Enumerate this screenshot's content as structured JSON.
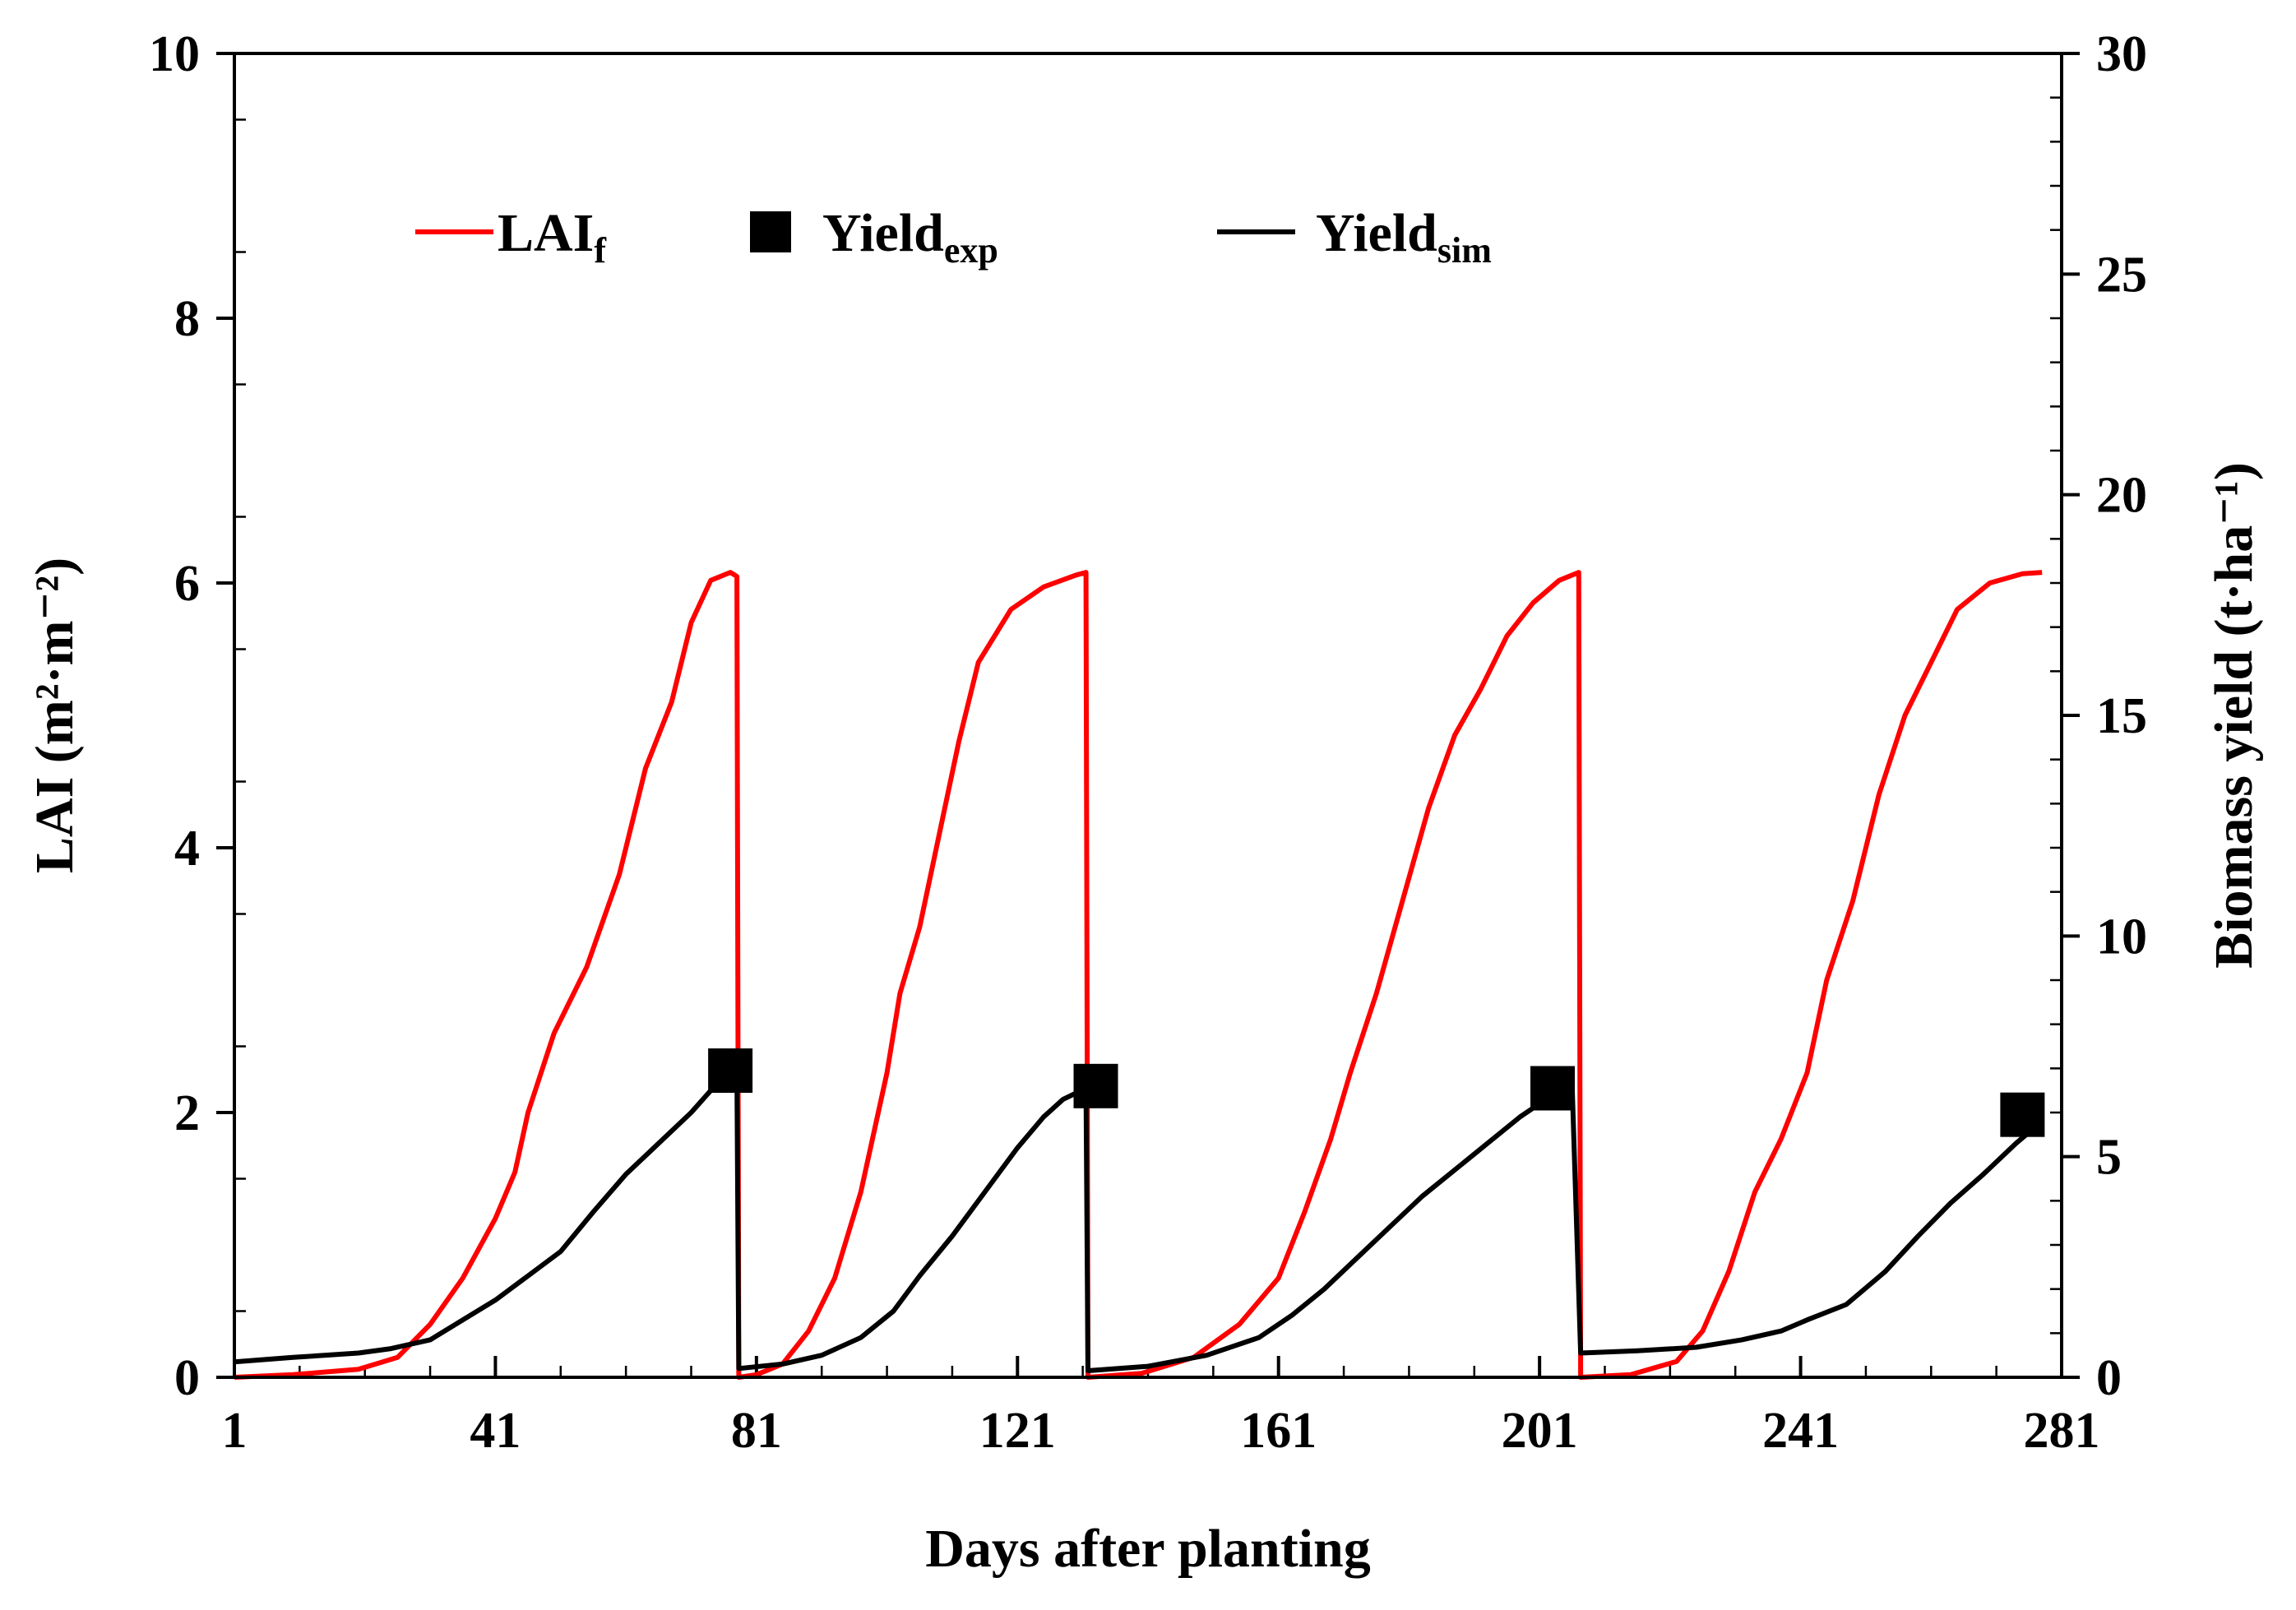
{
  "chart_data": {
    "type": "line",
    "title": "",
    "xlabel": "Days after planting",
    "ylabel": "LAI (m²·m⁻²)",
    "y2label": "Biomass yield (t·ha⁻¹)",
    "xlim": [
      1,
      281
    ],
    "ylim": [
      0,
      10
    ],
    "y2lim": [
      0,
      30
    ],
    "x_ticks": [
      1,
      41,
      81,
      121,
      161,
      201,
      241,
      281
    ],
    "y_ticks": [
      0,
      2,
      4,
      6,
      8,
      10
    ],
    "y2_ticks": [
      0,
      5,
      10,
      15,
      20,
      25,
      30
    ],
    "legend": {
      "position": "top-left",
      "items": [
        {
          "label": "LAI",
          "sub": "f",
          "style": "line",
          "color": "#ff0000"
        },
        {
          "label": "Yield",
          "sub": "exp",
          "style": "square",
          "color": "#000000"
        },
        {
          "label": "Yield",
          "sub": "sim",
          "style": "line",
          "color": "#000000"
        }
      ]
    },
    "series": [
      {
        "name": "LAI_f",
        "axis": "left",
        "color": "#ff0000",
        "points": [
          [
            1,
            0.0
          ],
          [
            10,
            0.02
          ],
          [
            20,
            0.06
          ],
          [
            26,
            0.15
          ],
          [
            31,
            0.4
          ],
          [
            36,
            0.75
          ],
          [
            41,
            1.2
          ],
          [
            44,
            1.55
          ],
          [
            46,
            2.0
          ],
          [
            50,
            2.6
          ],
          [
            55,
            3.1
          ],
          [
            60,
            3.8
          ],
          [
            64,
            4.6
          ],
          [
            68,
            5.1
          ],
          [
            71,
            5.7
          ],
          [
            74,
            6.02
          ],
          [
            77,
            6.08
          ],
          [
            78,
            6.05
          ],
          [
            78.3,
            0.0
          ],
          [
            81,
            0.02
          ],
          [
            85,
            0.1
          ],
          [
            89,
            0.35
          ],
          [
            93,
            0.75
          ],
          [
            97,
            1.4
          ],
          [
            101,
            2.3
          ],
          [
            103,
            2.9
          ],
          [
            106,
            3.4
          ],
          [
            109,
            4.1
          ],
          [
            112,
            4.8
          ],
          [
            115,
            5.4
          ],
          [
            120,
            5.8
          ],
          [
            125,
            5.97
          ],
          [
            130,
            6.06
          ],
          [
            131.5,
            6.08
          ],
          [
            131.8,
            0.0
          ],
          [
            140,
            0.03
          ],
          [
            148,
            0.15
          ],
          [
            155,
            0.4
          ],
          [
            161,
            0.75
          ],
          [
            165,
            1.25
          ],
          [
            169,
            1.8
          ],
          [
            172,
            2.3
          ],
          [
            176,
            2.9
          ],
          [
            180,
            3.6
          ],
          [
            184,
            4.3
          ],
          [
            188,
            4.85
          ],
          [
            192,
            5.2
          ],
          [
            196,
            5.6
          ],
          [
            200,
            5.85
          ],
          [
            204,
            6.02
          ],
          [
            207,
            6.08
          ],
          [
            207.3,
            0.0
          ],
          [
            215,
            0.02
          ],
          [
            222,
            0.12
          ],
          [
            226,
            0.35
          ],
          [
            230,
            0.8
          ],
          [
            234,
            1.4
          ],
          [
            238,
            1.8
          ],
          [
            242,
            2.3
          ],
          [
            245,
            3.0
          ],
          [
            249,
            3.6
          ],
          [
            253,
            4.4
          ],
          [
            257,
            5.0
          ],
          [
            261,
            5.4
          ],
          [
            265,
            5.8
          ],
          [
            270,
            6.0
          ],
          [
            275,
            6.07
          ],
          [
            278,
            6.08
          ]
        ]
      },
      {
        "name": "Yield_sim",
        "axis": "right",
        "color": "#000000",
        "points": [
          [
            1,
            0.35
          ],
          [
            10,
            0.45
          ],
          [
            20,
            0.55
          ],
          [
            25,
            0.65
          ],
          [
            31,
            0.85
          ],
          [
            36,
            1.3
          ],
          [
            41,
            1.75
          ],
          [
            46,
            2.3
          ],
          [
            51,
            2.85
          ],
          [
            56,
            3.75
          ],
          [
            61,
            4.6
          ],
          [
            66,
            5.3
          ],
          [
            71,
            6.0
          ],
          [
            74,
            6.5
          ],
          [
            77,
            6.9
          ],
          [
            78,
            6.9
          ],
          [
            78.3,
            0.2
          ],
          [
            85,
            0.3
          ],
          [
            91,
            0.5
          ],
          [
            97,
            0.9
          ],
          [
            102,
            1.5
          ],
          [
            106,
            2.3
          ],
          [
            111,
            3.2
          ],
          [
            116,
            4.2
          ],
          [
            121,
            5.2
          ],
          [
            125,
            5.9
          ],
          [
            128,
            6.3
          ],
          [
            131.5,
            6.55
          ],
          [
            131.8,
            0.15
          ],
          [
            141,
            0.25
          ],
          [
            150,
            0.5
          ],
          [
            158,
            0.9
          ],
          [
            163,
            1.4
          ],
          [
            168,
            2.0
          ],
          [
            173,
            2.7
          ],
          [
            178,
            3.4
          ],
          [
            183,
            4.1
          ],
          [
            188,
            4.7
          ],
          [
            193,
            5.3
          ],
          [
            198,
            5.9
          ],
          [
            202,
            6.3
          ],
          [
            206,
            6.6
          ],
          [
            207.3,
            0.55
          ],
          [
            216,
            0.6
          ],
          [
            225,
            0.68
          ],
          [
            232,
            0.85
          ],
          [
            238,
            1.05
          ],
          [
            242,
            1.3
          ],
          [
            248,
            1.65
          ],
          [
            254,
            2.4
          ],
          [
            259,
            3.2
          ],
          [
            264,
            3.95
          ],
          [
            269,
            4.6
          ],
          [
            274,
            5.3
          ],
          [
            278,
            5.8
          ]
        ]
      },
      {
        "name": "Yield_exp",
        "axis": "right",
        "color": "#000000",
        "marker": "square",
        "points": [
          [
            77,
            6.95
          ],
          [
            133,
            6.6
          ],
          [
            203,
            6.55
          ],
          [
            275,
            5.95
          ]
        ]
      }
    ]
  }
}
